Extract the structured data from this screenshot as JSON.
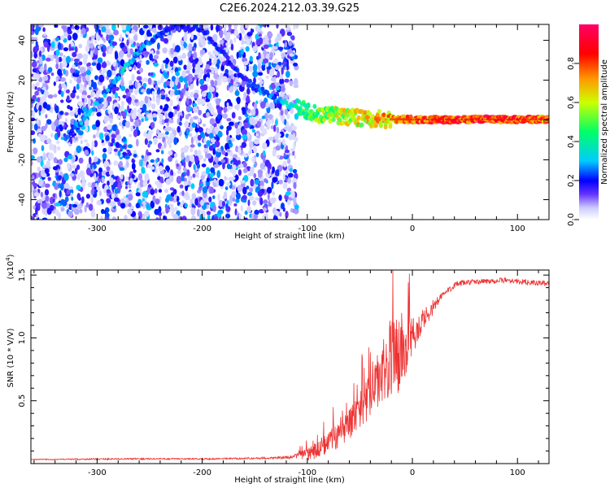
{
  "title": "C2E6.2024.212.03.39.G25",
  "chart_data": [
    {
      "type": "heatmap",
      "panel": "top",
      "xlabel": "Height of straight line (km)",
      "ylabel": "Frequency (Hz)",
      "xlim": [
        -363,
        130
      ],
      "ylim": [
        -50,
        48
      ],
      "x_ticks": [
        -300,
        -200,
        -100,
        0,
        100
      ],
      "y_ticks": [
        -40,
        -20,
        0,
        20,
        40
      ],
      "colorbar": {
        "label": "Normalized spectral amplitude",
        "range": [
          0,
          1
        ],
        "ticks": [
          0.0,
          0.2,
          0.4,
          0.6,
          0.8
        ],
        "tick_labels": [
          "0.0",
          "0.2",
          "0.4",
          "0.6",
          "0.8"
        ],
        "colors": [
          "#ffffff",
          "#ccccff",
          "#6633ff",
          "#0000ff",
          "#00ccff",
          "#00ff66",
          "#ccff00",
          "#ff9900",
          "#ff0000",
          "#ff0066"
        ]
      },
      "noise_region": {
        "x_range": [
          -363,
          -110
        ],
        "y_range": [
          -50,
          48
        ],
        "mean_amplitude": 0.15
      },
      "signal_ridge": {
        "x": [
          -330,
          -310,
          -290,
          -270,
          -250,
          -230,
          -200,
          -160,
          -130,
          -110,
          -90,
          -70,
          -50,
          -30,
          -10,
          10,
          40,
          70,
          100,
          130
        ],
        "frequency_hz": [
          -9,
          2,
          15,
          28,
          40,
          47,
          46,
          20,
          10,
          6,
          3,
          2,
          1,
          0.5,
          0.3,
          0.2,
          0.2,
          0.3,
          0.3,
          0.3
        ],
        "amplitude": [
          0.25,
          0.3,
          0.3,
          0.35,
          0.25,
          0.2,
          0.2,
          0.2,
          0.3,
          0.4,
          0.55,
          0.6,
          0.65,
          0.7,
          0.75,
          0.8,
          0.85,
          0.85,
          0.85,
          0.8
        ]
      }
    },
    {
      "type": "line",
      "panel": "bottom",
      "xlabel": "Height of straight line (km)",
      "ylabel": "SNR (10 * V/V)",
      "y_scale_label": "(x10",
      "y_scale_exp": "4",
      "xlim": [
        -363,
        130
      ],
      "ylim": [
        0,
        15400
      ],
      "x_ticks": [
        -300,
        -200,
        -100,
        0,
        100
      ],
      "y_ticks": [
        5000,
        10000,
        15000
      ],
      "y_tick_labels": [
        "0.5",
        "1.0",
        "1.5"
      ],
      "color": "#ee3333",
      "x": [
        -363,
        -300,
        -250,
        -200,
        -150,
        -120,
        -110,
        -100,
        -90,
        -80,
        -70,
        -60,
        -50,
        -40,
        -30,
        -25,
        -20,
        -15,
        -10,
        -5,
        0,
        5,
        10,
        20,
        30,
        40,
        50,
        70,
        90,
        110,
        130
      ],
      "y": [
        320,
        360,
        380,
        370,
        420,
        480,
        560,
        700,
        1100,
        1700,
        2300,
        3200,
        4300,
        5400,
        6800,
        7500,
        8300,
        8600,
        9000,
        9600,
        10200,
        10700,
        11400,
        12500,
        13500,
        14200,
        14400,
        14500,
        14600,
        14400,
        14300
      ],
      "noise_amplitude": [
        40,
        60,
        60,
        60,
        70,
        100,
        250,
        500,
        700,
        900,
        1100,
        1300,
        1500,
        1700,
        2000,
        2600,
        3200,
        3200,
        2800,
        2200,
        1700,
        1200,
        900,
        600,
        300,
        250,
        220,
        220,
        220,
        220,
        200
      ]
    }
  ]
}
